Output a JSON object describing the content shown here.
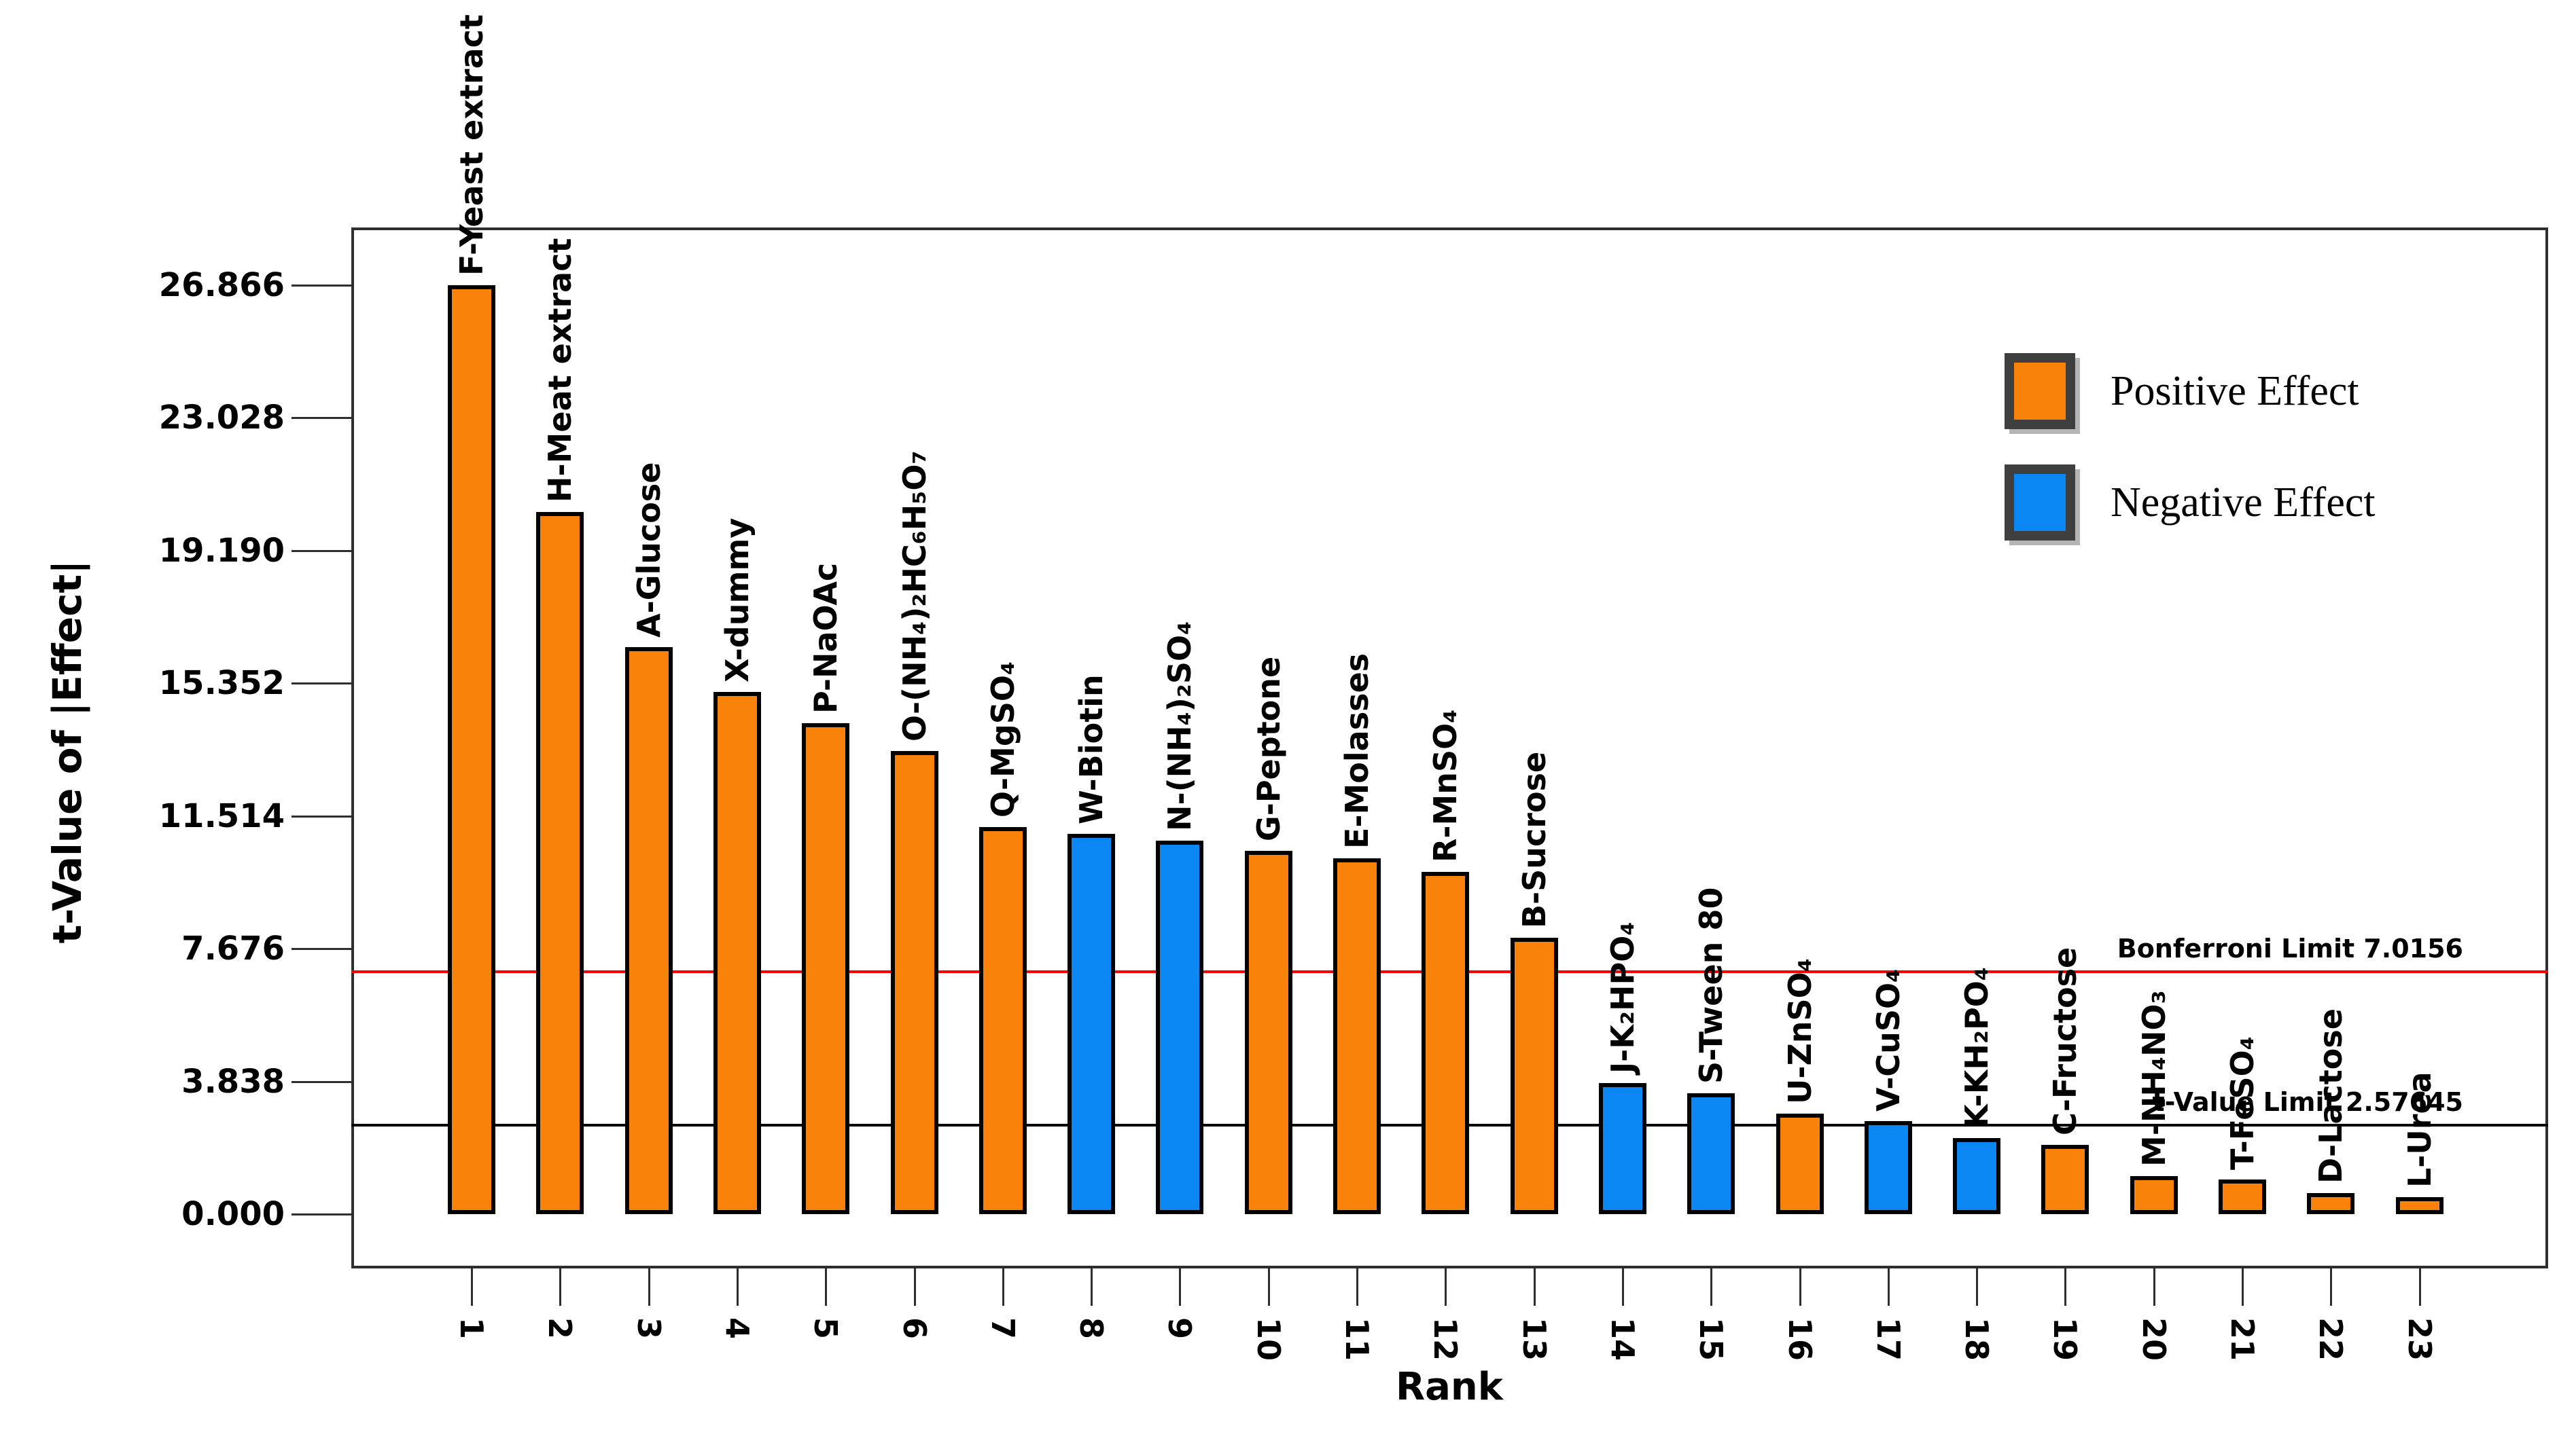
{
  "chart_data": {
    "type": "bar",
    "title": "",
    "xlabel": "Rank",
    "ylabel": "t-Value of |Effect|",
    "x": [
      1,
      2,
      3,
      4,
      5,
      6,
      7,
      8,
      9,
      10,
      11,
      12,
      13,
      14,
      15,
      16,
      17,
      18,
      19,
      20,
      21,
      22,
      23
    ],
    "categories": [
      "F-Yeast extract",
      "H-Meat extract",
      "A-Glucose",
      "X-dummy",
      "P-NaOAc",
      "O-(NH₄)₂HC₆H₅O₇",
      "Q-MgSO₄",
      "W-Biotin",
      "N-(NH₄)₂SO₄",
      "G-Peptone",
      "E-Molasses",
      "R-MnSO₄",
      "B-Sucrose",
      "J-K₂HPO₄",
      "S-Tween 80",
      "U-ZnSO₄",
      "V-CuSO₄",
      "K-KH₂PO₄",
      "C-Fructose",
      "M-NH₄NO₃",
      "T-FeSO₄",
      "D-Lactose",
      "L-Urea"
    ],
    "values": [
      26.87,
      20.3,
      16.4,
      15.1,
      14.2,
      13.4,
      11.2,
      11.0,
      10.8,
      10.5,
      10.3,
      9.9,
      8.0,
      3.8,
      3.5,
      2.9,
      2.7,
      2.2,
      2.0,
      1.1,
      1.0,
      0.6,
      0.5
    ],
    "effects": [
      "positive",
      "positive",
      "positive",
      "positive",
      "positive",
      "positive",
      "positive",
      "negative",
      "negative",
      "positive",
      "positive",
      "positive",
      "positive",
      "negative",
      "negative",
      "positive",
      "negative",
      "negative",
      "positive",
      "positive",
      "positive",
      "positive",
      "positive"
    ],
    "y_tick_labels": [
      "0.000",
      "3.838",
      "7.676",
      "11.514",
      "15.352",
      "19.190",
      "23.028",
      "26.866"
    ],
    "y_tick_values": [
      0,
      3.838,
      7.676,
      11.514,
      15.352,
      19.19,
      23.028,
      26.866
    ],
    "ylim": [
      -1.6,
      28.6
    ],
    "grid": false,
    "legend_position": "upper right",
    "reference_lines": [
      {
        "name": "bonferroni-limit",
        "label": "Bonferroni Limit 7.0156",
        "value": 7.0156,
        "color": "#ff0000"
      },
      {
        "name": "t-value-limit",
        "label": "t-Value Limit 2.57645",
        "value": 2.57645,
        "color": "#000000"
      }
    ],
    "legend": [
      {
        "label": "Positive Effect",
        "effect": "positive",
        "color": "#F8820A"
      },
      {
        "label": "Negative Effect",
        "effect": "negative",
        "color": "#0A87F2"
      }
    ]
  },
  "colors": {
    "positive": "#F8820A",
    "negative": "#0A87F2",
    "bar_border": "#000000",
    "axis": "#2e2e2e",
    "bonferroni_line": "#ff0000",
    "t_value_line": "#000000"
  }
}
